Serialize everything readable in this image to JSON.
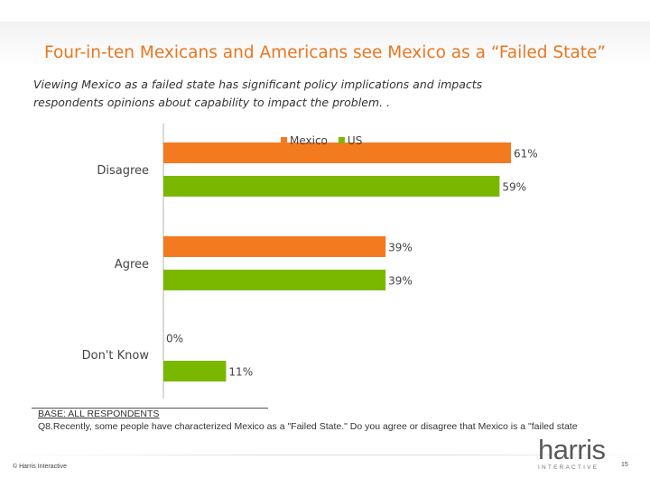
{
  "slide": {
    "title": "Four-in-ten Mexicans and Americans see Mexico as a “Failed State”",
    "subtitle": "Viewing Mexico as a failed state has significant policy implications and impacts respondents opinions about capability to impact the problem. .",
    "base_title": "BASE: ALL RESPONDENTS",
    "base_question": "Q8.Recently, some people have characterized Mexico as a \"Failed State.\"  Do you agree or disagree that Mexico is a \"failed state",
    "copyright": "© Harris Interactive",
    "logo_main": "harris",
    "logo_sub": "INTERACTIVE",
    "page_number": "15"
  },
  "chart_data": {
    "type": "bar",
    "orientation": "horizontal",
    "categories": [
      "Disagree",
      "Agree",
      "Don't Know"
    ],
    "series": [
      {
        "name": "Mexico",
        "color": "#f47a20",
        "values": [
          61,
          39,
          0
        ]
      },
      {
        "name": "US",
        "color": "#7ab800",
        "values": [
          59,
          39,
          11
        ]
      }
    ],
    "value_labels": [
      [
        "61%",
        "39%",
        "0%"
      ],
      [
        "59%",
        "39%",
        "11%"
      ]
    ],
    "xlim": [
      0,
      100
    ],
    "legend_position": "top",
    "axis_color": "#d9d9d9",
    "label_color": "#444444"
  }
}
